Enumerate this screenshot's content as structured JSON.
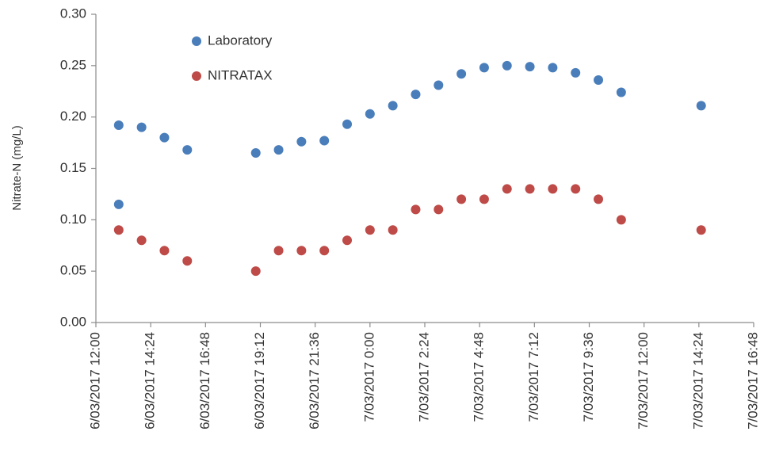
{
  "chart_data": {
    "type": "scatter",
    "y_label": "Nitrate-N (mg/L)",
    "series": [
      {
        "name": "Laboratory",
        "color": "#4a7ebb",
        "x": [
          13,
          13,
          14,
          15,
          16,
          19,
          20,
          21,
          22,
          23,
          24,
          25,
          26,
          27,
          28,
          29,
          30,
          31,
          32,
          33,
          34,
          35,
          38.5
        ],
        "values": [
          0.192,
          0.115,
          0.19,
          0.18,
          0.168,
          0.165,
          0.168,
          0.176,
          0.177,
          0.193,
          0.203,
          0.211,
          0.222,
          0.231,
          0.242,
          0.248,
          0.25,
          0.249,
          0.248,
          0.243,
          0.236,
          0.224,
          0.211
        ]
      },
      {
        "name": "NITRATAX",
        "color": "#be4b48",
        "x": [
          13,
          14,
          15,
          16,
          19,
          20,
          21,
          22,
          23,
          24,
          25,
          26,
          27,
          28,
          29,
          30,
          31,
          32,
          33,
          34,
          35,
          38.5
        ],
        "values": [
          0.09,
          0.08,
          0.07,
          0.06,
          0.05,
          0.07,
          0.07,
          0.07,
          0.08,
          0.09,
          0.09,
          0.11,
          0.11,
          0.12,
          0.12,
          0.13,
          0.13,
          0.13,
          0.13,
          0.12,
          0.1,
          0.09
        ]
      }
    ],
    "xlim": [
      12,
      40.8
    ],
    "xticks": [
      {
        "value": 12,
        "label": "6/03/2017 12:00"
      },
      {
        "value": 14.4,
        "label": "6/03/2017 14:24"
      },
      {
        "value": 16.8,
        "label": "6/03/2017 16:48"
      },
      {
        "value": 19.2,
        "label": "6/03/2017 19:12"
      },
      {
        "value": 21.6,
        "label": "6/03/2017 21:36"
      },
      {
        "value": 24,
        "label": "7/03/2017 0:00"
      },
      {
        "value": 26.4,
        "label": "7/03/2017 2:24"
      },
      {
        "value": 28.8,
        "label": "7/03/2017 4:48"
      },
      {
        "value": 31.2,
        "label": "7/03/2017 7:12"
      },
      {
        "value": 33.6,
        "label": "7/03/2017 9:36"
      },
      {
        "value": 36,
        "label": "7/03/2017 12:00"
      },
      {
        "value": 38.4,
        "label": "7/03/2017 14:24"
      },
      {
        "value": 40.8,
        "label": "7/03/2017 16:48"
      }
    ],
    "ylim": [
      0,
      0.3
    ],
    "yticks": [
      {
        "value": 0,
        "label": "0.00"
      },
      {
        "value": 0.05,
        "label": "0.05"
      },
      {
        "value": 0.1,
        "label": "0.10"
      },
      {
        "value": 0.15,
        "label": "0.15"
      },
      {
        "value": 0.2,
        "label": "0.20"
      },
      {
        "value": 0.25,
        "label": "0.25"
      },
      {
        "value": 0.3,
        "label": "0.30"
      }
    ],
    "grid": false,
    "legend": "upper left"
  }
}
